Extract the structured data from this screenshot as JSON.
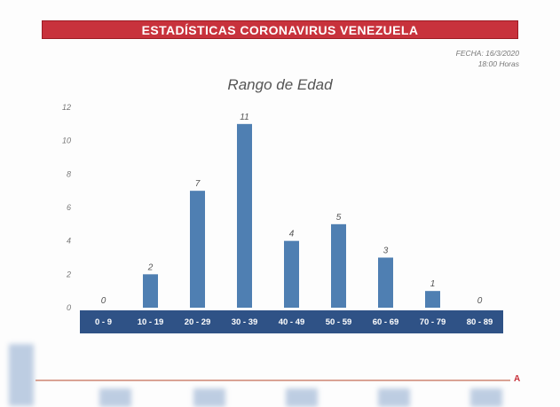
{
  "banner": {
    "title": "ESTADÍSTICAS CORONAVIRUS VENEZUELA"
  },
  "meta": {
    "date": "FECHA: 16/3/2020",
    "time": "18:00 Horas"
  },
  "colors": {
    "banner": "#c8323c",
    "bar": "#4f7fb2",
    "axis_band": "#2f5286"
  },
  "chart_data": {
    "type": "bar",
    "title": "Rango de Edad",
    "categories": [
      "0 - 9",
      "10 - 19",
      "20 - 29",
      "30 - 39",
      "40 - 49",
      "50 - 59",
      "60 - 69",
      "70 - 79",
      "80 - 89"
    ],
    "values": [
      0,
      2,
      7,
      11,
      4,
      5,
      3,
      1,
      0
    ],
    "ylim": [
      0,
      12
    ],
    "yticks": [
      0,
      2,
      4,
      6,
      8,
      10,
      12
    ],
    "grid": false,
    "legend": "none"
  },
  "footer": {
    "mark": "A"
  }
}
